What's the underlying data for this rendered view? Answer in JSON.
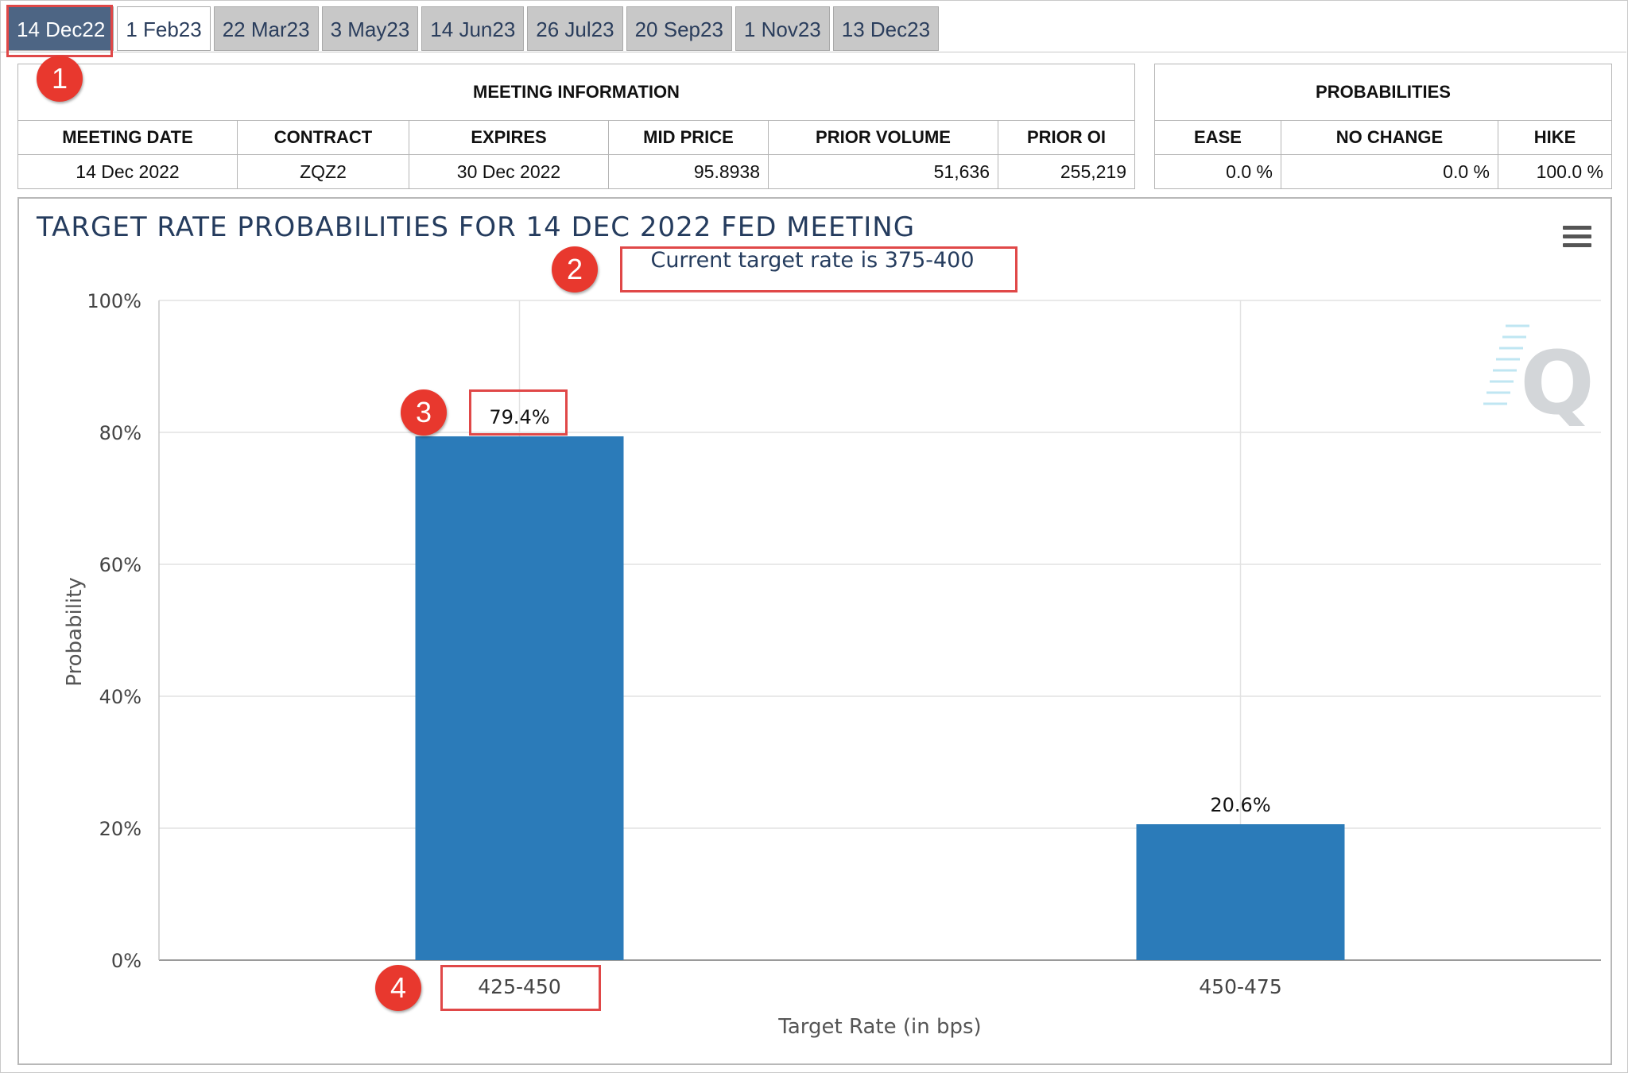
{
  "tabs": [
    {
      "label": "14 Dec22",
      "state": "active"
    },
    {
      "label": "1 Feb23",
      "state": "white"
    },
    {
      "label": "22 Mar23",
      "state": "normal"
    },
    {
      "label": "3 May23",
      "state": "normal"
    },
    {
      "label": "14 Jun23",
      "state": "normal"
    },
    {
      "label": "26 Jul23",
      "state": "normal"
    },
    {
      "label": "20 Sep23",
      "state": "normal"
    },
    {
      "label": "1 Nov23",
      "state": "normal"
    },
    {
      "label": "13 Dec23",
      "state": "normal"
    }
  ],
  "meeting_info": {
    "title": "MEETING INFORMATION",
    "headers": [
      "MEETING DATE",
      "CONTRACT",
      "EXPIRES",
      "MID PRICE",
      "PRIOR VOLUME",
      "PRIOR OI"
    ],
    "row": [
      "14 Dec 2022",
      "ZQZ2",
      "30 Dec 2022",
      "95.8938",
      "51,636",
      "255,219"
    ]
  },
  "probabilities": {
    "title": "PROBABILITIES",
    "headers": [
      "EASE",
      "NO CHANGE",
      "HIKE"
    ],
    "row": [
      "0.0 %",
      "0.0 %",
      "100.0 %"
    ]
  },
  "chart_data": {
    "type": "bar",
    "title": "TARGET RATE PROBABILITIES FOR 14 DEC 2022 FED MEETING",
    "subtitle": "Current target rate is 375-400",
    "categories": [
      "425-450",
      "450-475"
    ],
    "values": [
      79.4,
      20.6
    ],
    "data_labels": [
      "79.4%",
      "20.6%"
    ],
    "xlabel": "Target Rate (in bps)",
    "ylabel": "Probability",
    "ylim": [
      0,
      100
    ],
    "yticks": [
      0,
      20,
      40,
      60,
      80,
      100
    ],
    "ytick_labels": [
      "0%",
      "20%",
      "40%",
      "60%",
      "80%",
      "100%"
    ],
    "grid": true,
    "bar_color": "#2b7bb9"
  },
  "annotations": [
    "1",
    "2",
    "3",
    "4"
  ],
  "watermark": "Q"
}
